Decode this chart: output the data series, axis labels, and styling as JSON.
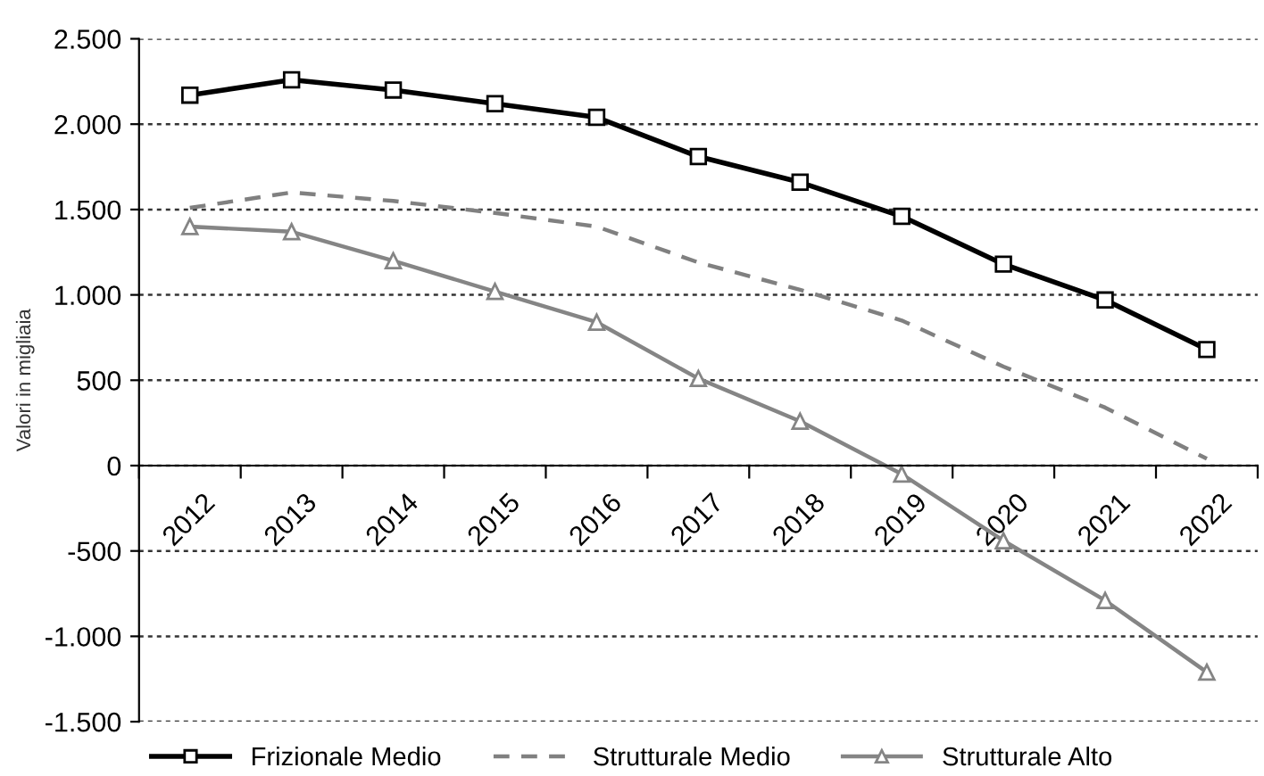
{
  "chart_data": {
    "type": "line",
    "ylabel": "Valori in migliaia",
    "categories": [
      "2012",
      "2013",
      "2014",
      "2015",
      "2016",
      "2017",
      "2018",
      "2019",
      "2020",
      "2021",
      "2022"
    ],
    "series": [
      {
        "name": "Frizionale Medio",
        "color": "#000000",
        "marker": "square",
        "line_style": "solid",
        "values": [
          2170,
          2260,
          2200,
          2120,
          2040,
          1810,
          1660,
          1460,
          1180,
          970,
          680
        ]
      },
      {
        "name": "Strutturale Medio",
        "color": "#808080",
        "marker": "none",
        "line_style": "dashed",
        "values": [
          1510,
          1600,
          1550,
          1480,
          1400,
          1190,
          1030,
          850,
          580,
          340,
          40
        ]
      },
      {
        "name": "Strutturale Alto",
        "color": "#858585",
        "marker": "triangle",
        "line_style": "solid",
        "values": [
          1400,
          1370,
          1200,
          1020,
          840,
          510,
          260,
          -50,
          -440,
          -790,
          -1210
        ]
      }
    ],
    "ylim": [
      -1500,
      2500
    ],
    "yticks": [
      {
        "value": -1500,
        "label": "-1.500"
      },
      {
        "value": -1000,
        "label": "-1.000"
      },
      {
        "value": -500,
        "label": "-500"
      },
      {
        "value": 0,
        "label": "0"
      },
      {
        "value": 500,
        "label": "500"
      },
      {
        "value": 1000,
        "label": "1.000"
      },
      {
        "value": 1500,
        "label": "1.500"
      },
      {
        "value": 2000,
        "label": "2.000"
      },
      {
        "value": 2500,
        "label": "2.500"
      }
    ],
    "grid": "y",
    "legend": "bottom"
  }
}
